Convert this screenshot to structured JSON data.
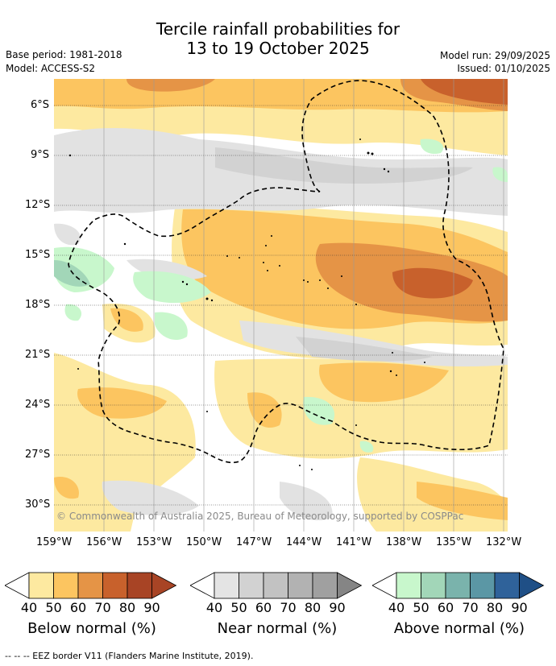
{
  "title_line1": "Tercile rainfall probabilities for",
  "title_line2": "13 to 19 October 2025",
  "base_period": "Base period: 1981-2018",
  "model": "Model: ACCESS-S2",
  "model_run": "Model run: 29/09/2025",
  "issued": "Issued: 01/10/2025",
  "lat_labels": [
    "6°S",
    "9°S",
    "12°S",
    "15°S",
    "18°S",
    "21°S",
    "24°S",
    "27°S",
    "30°S"
  ],
  "lon_labels": [
    "159°W",
    "156°W",
    "153°W",
    "150°W",
    "147°W",
    "144°W",
    "141°W",
    "138°W",
    "135°W",
    "132°W"
  ],
  "copyright": "© Commonwealth of Australia 2025, Bureau of Meteorology, supported by COSPPac",
  "colorbars": [
    {
      "title": "Below normal (%)",
      "colors": [
        "#ffffff",
        "#fde9a0",
        "#fcc560",
        "#e59446",
        "#c8612c",
        "#a84425",
        "#a84425"
      ],
      "ticks": [
        "40",
        "50",
        "60",
        "70",
        "80",
        "90"
      ]
    },
    {
      "title": "Near normal (%)",
      "colors": [
        "#ffffff",
        "#e4e4e4",
        "#d2d2d2",
        "#c2c2c2",
        "#b2b2b2",
        "#a0a0a0",
        "#858585"
      ],
      "ticks": [
        "40",
        "50",
        "60",
        "70",
        "80",
        "90"
      ]
    },
    {
      "title": "Above normal (%)",
      "colors": [
        "#ffffff",
        "#c8f7cc",
        "#a2d6b8",
        "#7ab3ac",
        "#5b97a5",
        "#2f629a",
        "#1f4f86"
      ],
      "ticks": [
        "40",
        "50",
        "60",
        "70",
        "80",
        "90"
      ]
    }
  ],
  "footer": "-- -- -- EEZ border V11 (Flanders Marine Institute, 2019)."
}
